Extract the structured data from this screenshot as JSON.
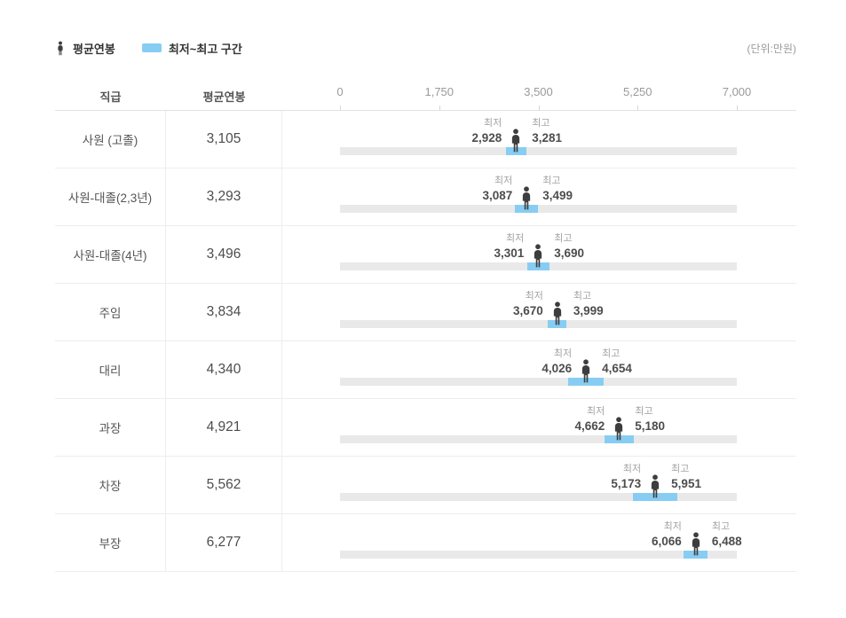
{
  "legend": {
    "avg_label": "평균연봉",
    "range_label": "최저~최고 구간",
    "unit_note": "(단위:만원)"
  },
  "table": {
    "col_rank": "직급",
    "col_avg": "평균연봉",
    "min_caption": "최저",
    "max_caption": "최고"
  },
  "colors": {
    "range_blue": "#87cdf3",
    "track_gray": "#e9e9e9",
    "person_dark": "#3d3d3d"
  },
  "chart_data": {
    "type": "bar",
    "subtype": "horizontal-range-with-average-marker",
    "unit": "만원",
    "categories": [
      "사원 (고졸)",
      "사원-대졸(2,3년)",
      "사원-대졸(4년)",
      "주임",
      "대리",
      "과장",
      "차장",
      "부장"
    ],
    "series": [
      {
        "name": "평균연봉",
        "values": [
          3105,
          3293,
          3496,
          3834,
          4340,
          4921,
          5562,
          6277
        ]
      },
      {
        "name": "최저",
        "values": [
          2928,
          3087,
          3301,
          3670,
          4026,
          4662,
          5173,
          6066
        ]
      },
      {
        "name": "최고",
        "values": [
          3281,
          3499,
          3690,
          3999,
          4654,
          5180,
          5951,
          6488
        ]
      }
    ],
    "x_ticks": [
      0,
      1750,
      3500,
      5250,
      7000
    ],
    "xlim": [
      0,
      7000
    ],
    "grid": false,
    "legend_position": "top-left"
  }
}
